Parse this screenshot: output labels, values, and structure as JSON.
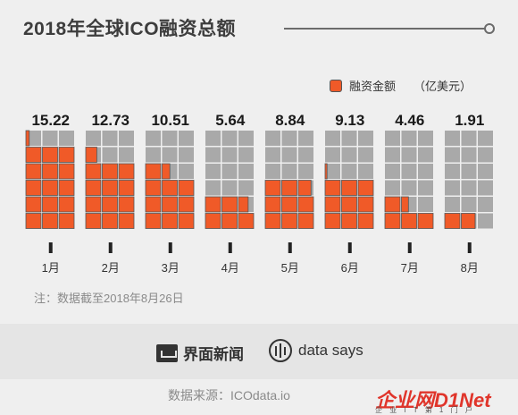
{
  "title": "2018年全球ICO融资总额",
  "legend": {
    "label": "融资金额",
    "unit": "（亿美元）"
  },
  "colors": {
    "filled": "#f05a28",
    "empty": "#a9a9a9",
    "text": "#1a1a1a",
    "bg": "#efefef"
  },
  "chart_data": {
    "type": "bar",
    "title": "2018年全球ICO融资总额",
    "xlabel": "",
    "ylabel": "",
    "unit": "亿美元",
    "categories": [
      "1月",
      "2月",
      "3月",
      "4月",
      "5月",
      "6月",
      "7月",
      "8月"
    ],
    "values": [
      15.22,
      12.73,
      10.51,
      5.64,
      8.84,
      9.13,
      4.46,
      1.91
    ],
    "value_labels": [
      "15.22",
      "12.73",
      "10.51",
      "5.64",
      "8.84",
      "9.13",
      "4.46",
      "1.91"
    ],
    "grid": {
      "rows": 6,
      "cols": 3,
      "unit_value": 1
    }
  },
  "note": "注：数据截至2018年8月26日",
  "brand1": "界面新闻",
  "brand2": "data says",
  "source": "数据来源：ICOdata.io",
  "watermark": "企业网D1Net",
  "watermark_sub": "企 业 I T 第 1 门 户"
}
